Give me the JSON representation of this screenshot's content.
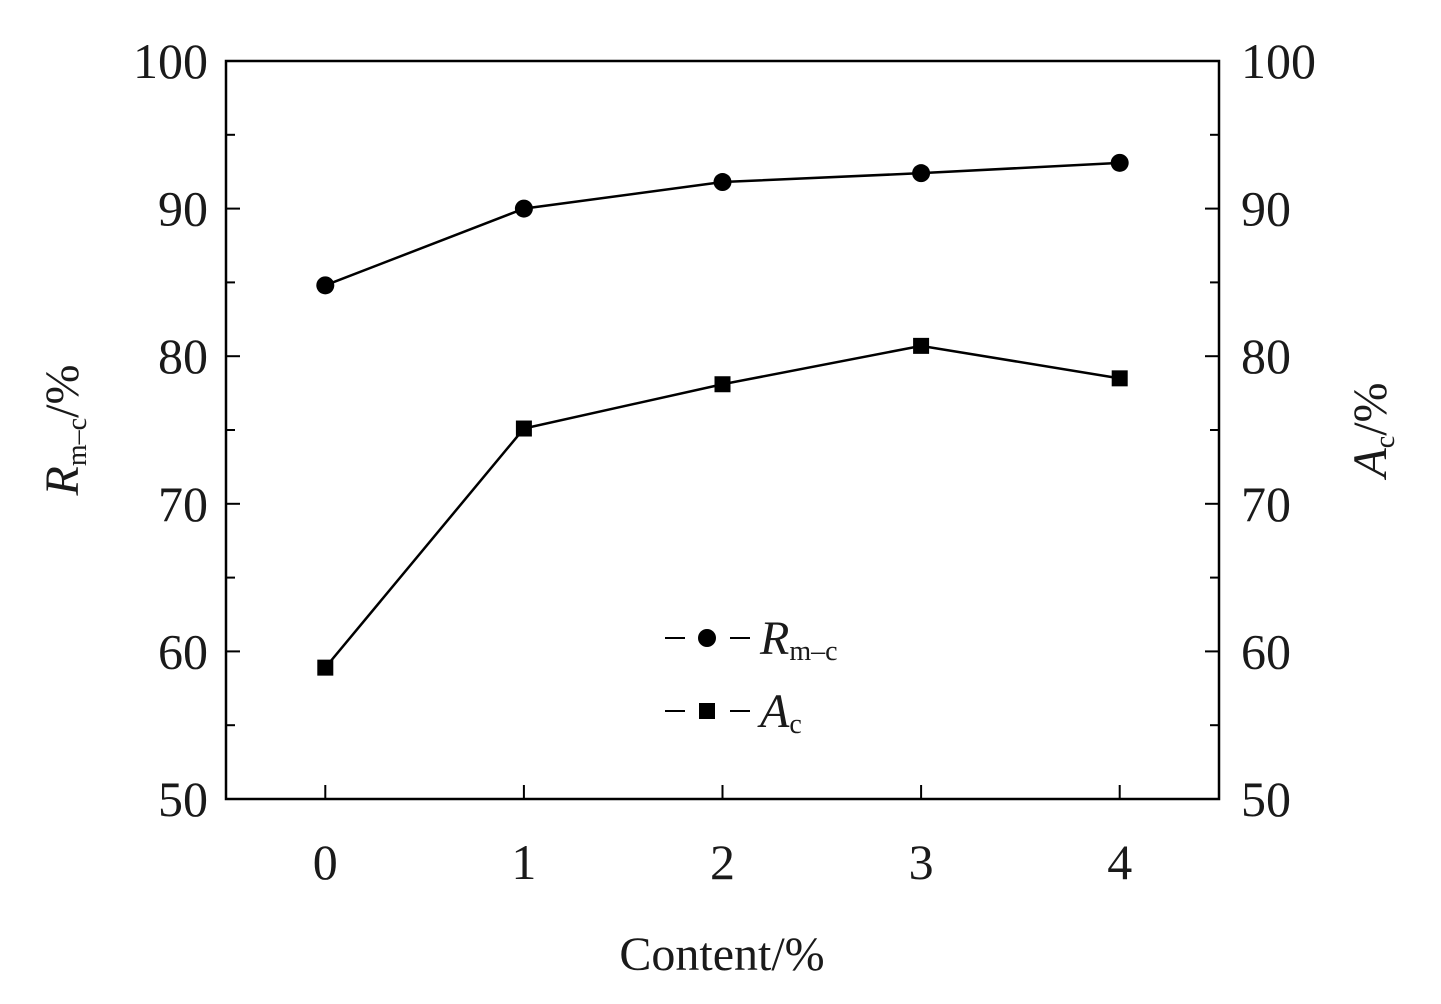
{
  "chart_data": {
    "type": "line",
    "x": [
      0,
      1,
      2,
      3,
      4
    ],
    "xlabel": "Content/%",
    "xticks": [
      "0",
      "1",
      "2",
      "3",
      "4"
    ],
    "xlim": [
      -0.5,
      4.5
    ],
    "ylabel_left": {
      "main": "R",
      "sub": "m–c",
      "suffix": "/%"
    },
    "ylabel_right": {
      "main": "A",
      "sub": "c",
      "suffix": "/%"
    },
    "ylim": [
      50,
      100
    ],
    "yticks": [
      "50",
      "60",
      "70",
      "80",
      "90",
      "100"
    ],
    "grid": false,
    "legend_position": "bottom-center",
    "series": [
      {
        "name": "R",
        "name_sub": "m–c",
        "marker": "circle",
        "axis": "left",
        "values": [
          84.8,
          90.0,
          91.8,
          92.4,
          93.1
        ]
      },
      {
        "name": "A",
        "name_sub": "c",
        "marker": "square",
        "axis": "right",
        "values": [
          58.9,
          75.1,
          78.1,
          80.7,
          78.5
        ]
      }
    ],
    "colors": {
      "line": "#000000",
      "text": "#1a1a1a"
    }
  }
}
